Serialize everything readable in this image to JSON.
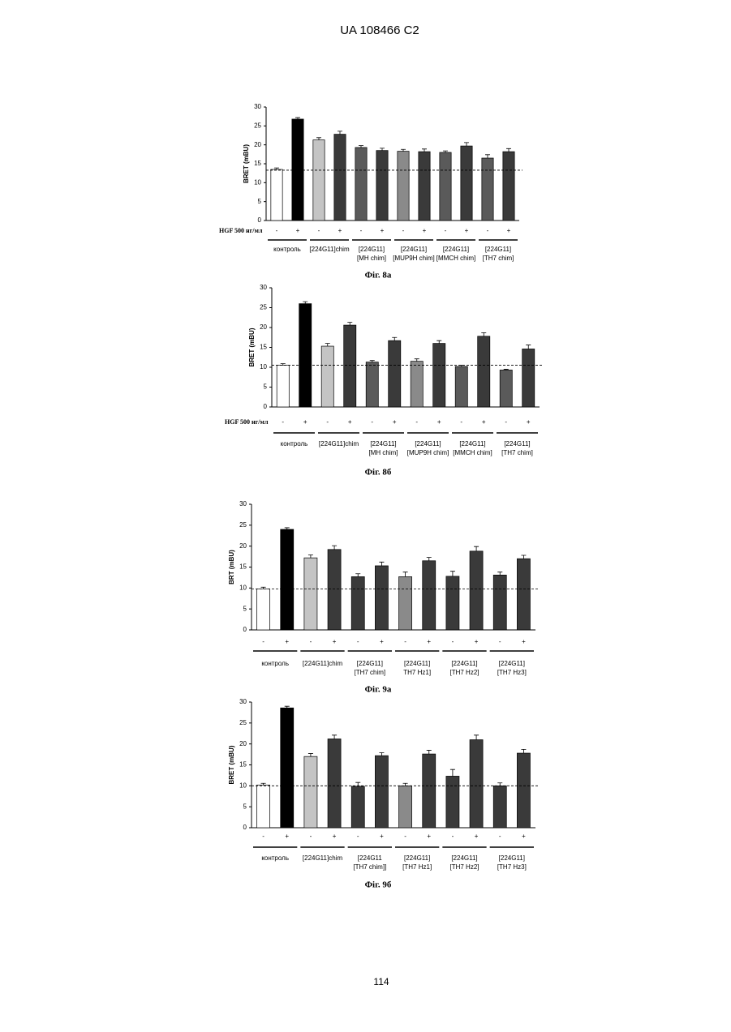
{
  "header": "UA   108466   C2",
  "page_number": "114",
  "chart_data": [
    {
      "type": "bar",
      "caption": "Фіг. 8а",
      "ylabel": "BRET (mBU)",
      "row_label": "HGF 500 нг/мл",
      "ylim": [
        0,
        30
      ],
      "yticks": [
        0,
        5,
        10,
        15,
        20,
        25,
        30
      ],
      "reference_line": 13.3,
      "categories": [
        "-",
        "+",
        "-",
        "+",
        "-",
        "+",
        "-",
        "+",
        "-",
        "+",
        "-",
        "+"
      ],
      "values": [
        13.5,
        26.8,
        21.3,
        22.8,
        19.3,
        18.5,
        18.3,
        18.2,
        18.0,
        19.7,
        16.5,
        18.2
      ],
      "errors": [
        0.4,
        0.4,
        0.6,
        0.8,
        0.5,
        0.6,
        0.5,
        0.7,
        0.4,
        0.9,
        0.9,
        0.8
      ],
      "colors": [
        "#ffffff",
        "#000000",
        "#c4c4c4",
        "#3a3a3a",
        "#5a5a5a",
        "#3a3a3a",
        "#8a8a8a",
        "#3a3a3a",
        "#5a5a5a",
        "#3a3a3a",
        "#5a5a5a",
        "#3a3a3a"
      ],
      "groups": [
        [
          "контроль"
        ],
        [
          "[224G11]chim"
        ],
        [
          "[224G11]",
          "[MH chim]"
        ],
        [
          "[224G11]",
          "[MUP9H chim]"
        ],
        [
          "[224G11]",
          "[MMCH chim]"
        ],
        [
          "[224G11]",
          "[TH7 chim]"
        ]
      ]
    },
    {
      "type": "bar",
      "caption": "Фіг. 8б",
      "ylabel": "BRET (mBU)",
      "row_label": "HGF 500 нг/мл",
      "ylim": [
        0,
        30
      ],
      "yticks": [
        0,
        5,
        10,
        15,
        20,
        25,
        30
      ],
      "reference_line": 10.5,
      "categories": [
        "-",
        "+",
        "-",
        "+",
        "-",
        "+",
        "-",
        "+",
        "-",
        "+",
        "-",
        "+"
      ],
      "values": [
        10.5,
        26.0,
        15.3,
        20.6,
        11.3,
        16.7,
        11.5,
        16.0,
        10.2,
        17.8,
        9.3,
        14.6
      ],
      "errors": [
        0.4,
        0.5,
        0.7,
        0.7,
        0.4,
        0.8,
        0.6,
        0.7,
        0.3,
        0.9,
        0.2,
        1.0
      ],
      "colors": [
        "#ffffff",
        "#000000",
        "#c4c4c4",
        "#3a3a3a",
        "#5a5a5a",
        "#3a3a3a",
        "#8a8a8a",
        "#3a3a3a",
        "#5a5a5a",
        "#3a3a3a",
        "#5a5a5a",
        "#3a3a3a"
      ],
      "groups": [
        [
          "контроль"
        ],
        [
          "[224G11]chim"
        ],
        [
          "[224G11]",
          "[MH chim]"
        ],
        [
          "[224G11]",
          "[MUP9H chim]"
        ],
        [
          "[224G11]",
          "[MMCH chim]"
        ],
        [
          "[224G11]",
          "[TH7 chim]"
        ]
      ]
    },
    {
      "type": "bar",
      "caption": "Фіг. 9а",
      "ylabel": "BRT (mBU)",
      "ylim": [
        0,
        30
      ],
      "yticks": [
        0,
        5,
        10,
        15,
        20,
        25,
        30
      ],
      "reference_line": 9.8,
      "categories": [
        "-",
        "+",
        "-",
        "+",
        "-",
        "+",
        "-",
        "+",
        "-",
        "+",
        "-",
        "+"
      ],
      "values": [
        9.8,
        24.0,
        17.2,
        19.2,
        12.7,
        15.3,
        12.7,
        16.5,
        12.8,
        18.8,
        13.1,
        17.0
      ],
      "errors": [
        0.4,
        0.4,
        0.7,
        0.9,
        0.7,
        0.9,
        1.1,
        0.8,
        1.2,
        1.1,
        0.7,
        0.8
      ],
      "colors": [
        "#ffffff",
        "#000000",
        "#c4c4c4",
        "#3a3a3a",
        "#3a3a3a",
        "#3a3a3a",
        "#8a8a8a",
        "#3a3a3a",
        "#3a3a3a",
        "#3a3a3a",
        "#3a3a3a",
        "#3a3a3a"
      ],
      "groups": [
        [
          "контроль"
        ],
        [
          "[224G11]chim"
        ],
        [
          "[224G11]",
          "[TH7 chim]"
        ],
        [
          "[224G11]",
          "TH7 Hz1]"
        ],
        [
          "[224G11]",
          "[TH7 Hz2]"
        ],
        [
          "[224G11]",
          "[TH7 Hz3]"
        ]
      ]
    },
    {
      "type": "bar",
      "caption": "Фіг. 9б",
      "ylabel": "BRET (mBU)",
      "ylim": [
        0,
        30
      ],
      "yticks": [
        0,
        5,
        10,
        15,
        20,
        25,
        30
      ],
      "reference_line": 10.0,
      "categories": [
        "-",
        "+",
        "-",
        "+",
        "-",
        "+",
        "-",
        "+",
        "-",
        "+",
        "-",
        "+"
      ],
      "values": [
        10.2,
        28.6,
        17.0,
        21.2,
        9.9,
        17.2,
        10.0,
        17.6,
        12.3,
        21.0,
        10.0,
        17.8
      ],
      "errors": [
        0.4,
        0.4,
        0.7,
        0.9,
        0.9,
        0.7,
        0.6,
        0.9,
        1.6,
        1.1,
        0.7,
        0.9
      ],
      "colors": [
        "#ffffff",
        "#000000",
        "#c4c4c4",
        "#3a3a3a",
        "#3a3a3a",
        "#3a3a3a",
        "#8a8a8a",
        "#3a3a3a",
        "#3a3a3a",
        "#3a3a3a",
        "#3a3a3a",
        "#3a3a3a"
      ],
      "groups": [
        [
          "контроль"
        ],
        [
          "[224G11]chim"
        ],
        [
          "[224G11",
          "[TH7 chim]]"
        ],
        [
          "[224G11]",
          "[TH7 Hz1]"
        ],
        [
          "[224G11]",
          "[TH7 Hz2]"
        ],
        [
          "[224G11]",
          "[TH7 Hz3]"
        ]
      ]
    }
  ]
}
